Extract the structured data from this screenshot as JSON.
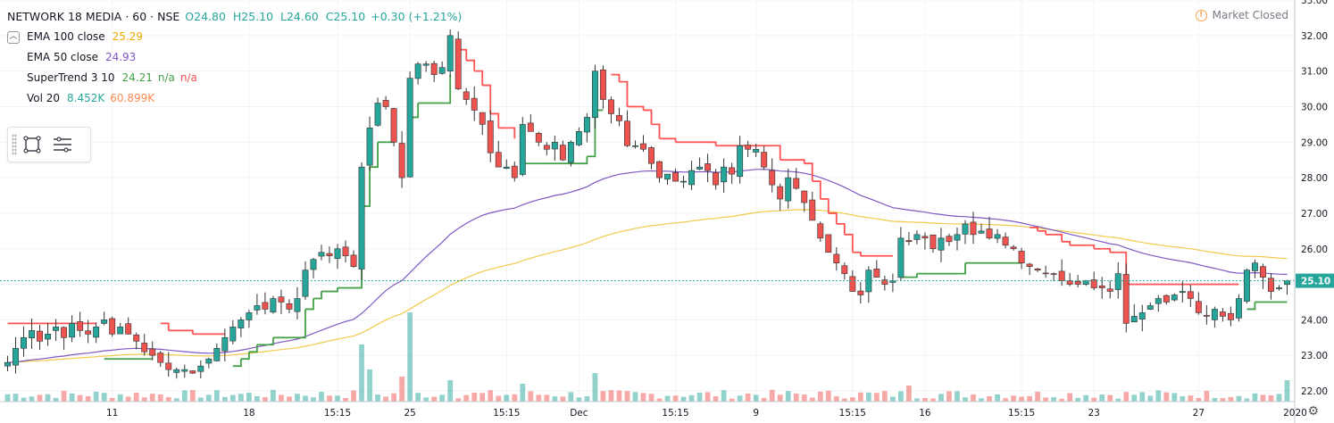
{
  "header": {
    "symbol": "NETWORK 18 MEDIA · 60 · NSE",
    "ohlc_text": "O24.80  H25.10  L24.60  C25.10",
    "change": "+0.30 (+1.21%)",
    "change_color": "#26a69a"
  },
  "indicators": [
    {
      "label": "EMA 100 close",
      "values": [
        "25.29"
      ],
      "colors": [
        "#f2c94c"
      ]
    },
    {
      "label": "EMA 50 close",
      "values": [
        "24.93"
      ],
      "colors": [
        "#7e57c2"
      ]
    },
    {
      "label": "SuperTrend 3 10",
      "values": [
        "24.21",
        "n/a",
        "n/a"
      ],
      "colors": [
        "#43a047",
        "#43a047",
        "#ef5350"
      ]
    },
    {
      "label": "Vol 20",
      "values": [
        "8.452K",
        "60.899K"
      ],
      "colors": [
        "#26a69a",
        "#ff8a50"
      ]
    }
  ],
  "market_status": "Market Closed",
  "icons": {
    "collapse": "chevron-up-icon",
    "rectangle_tool": "rectangle-icon",
    "settings_tool": "lines-icon",
    "market_status": "exclamation-icon",
    "settings": "gear-icon"
  },
  "colors": {
    "up": "#26a69a",
    "down": "#ef5350",
    "ema100": "#f2c94c",
    "ema50": "#7e57c2",
    "st_up": "#43a047",
    "st_down": "#ff5252",
    "grid": "#f0f3fa"
  },
  "chart_data": {
    "type": "candlestick",
    "ylim": [
      21.7,
      33.0
    ],
    "y_ticks": [
      "22.00",
      "23.00",
      "24.00",
      "25.00",
      "26.00",
      "27.00",
      "28.00",
      "29.00",
      "30.00",
      "31.00",
      "32.00",
      "33.00"
    ],
    "x_ticks": [
      {
        "label": "11",
        "bar": 13
      },
      {
        "label": "18",
        "bar": 30
      },
      {
        "label": "15:15",
        "bar": 41
      },
      {
        "label": "25",
        "bar": 50
      },
      {
        "label": "15:15",
        "bar": 62
      },
      {
        "label": "Dec",
        "bar": 71
      },
      {
        "label": "15:15",
        "bar": 83
      },
      {
        "label": "9",
        "bar": 93
      },
      {
        "label": "15:15",
        "bar": 105
      },
      {
        "label": "16",
        "bar": 114
      },
      {
        "label": "15:15",
        "bar": 126
      },
      {
        "label": "23",
        "bar": 135
      },
      {
        "label": "27",
        "bar": 148
      },
      {
        "label": "2020",
        "bar": 160
      }
    ],
    "last_price": "25.10",
    "closes": [
      22.8,
      23.2,
      23.5,
      23.7,
      23.4,
      23.6,
      23.8,
      23.5,
      23.9,
      23.7,
      23.6,
      23.8,
      24.0,
      23.6,
      23.8,
      23.6,
      23.4,
      23.1,
      23.0,
      22.8,
      22.6,
      22.6,
      22.6,
      22.5,
      22.7,
      22.9,
      23.2,
      23.5,
      23.8,
      24.0,
      24.2,
      24.4,
      24.3,
      24.6,
      24.5,
      24.3,
      24.6,
      25.4,
      25.7,
      25.9,
      25.8,
      26.0,
      25.8,
      25.5,
      28.3,
      29.4,
      30.1,
      30.0,
      29.0,
      28.0,
      30.8,
      31.2,
      31.2,
      30.9,
      31.1,
      32.0,
      30.5,
      30.2,
      29.9,
      29.5,
      28.7,
      28.3,
      28.3,
      28.0,
      29.5,
      29.3,
      29.0,
      28.8,
      29.0,
      28.5,
      29.0,
      29.3,
      29.7,
      31.0,
      30.2,
      29.8,
      29.6,
      28.9,
      28.9,
      28.8,
      28.4,
      28.0,
      28.1,
      27.9,
      27.9,
      28.2,
      28.3,
      28.2,
      27.8,
      28.3,
      28.1,
      28.9,
      28.8,
      28.8,
      28.3,
      27.8,
      27.4,
      28.0,
      27.7,
      27.3,
      26.8,
      26.3,
      25.9,
      25.6,
      25.3,
      24.8,
      24.7,
      25.4,
      25.2,
      25.0,
      25.1,
      26.3,
      26.2,
      26.4,
      26.3,
      26.0,
      26.3,
      26.2,
      26.4,
      26.7,
      26.4,
      26.5,
      26.3,
      26.4,
      26.1,
      26.0,
      25.6,
      25.5,
      25.4,
      25.3,
      25.3,
      25.1,
      25.0,
      25.0,
      25.1,
      24.9,
      24.9,
      24.8,
      25.3,
      23.9,
      24.1,
      24.2,
      24.4,
      24.6,
      24.5,
      24.7,
      24.8,
      24.6,
      24.2,
      24.1,
      24.3,
      24.1,
      24.0,
      24.6,
      25.4,
      25.6,
      25.2,
      24.8,
      24.9,
      25.1
    ]
  }
}
